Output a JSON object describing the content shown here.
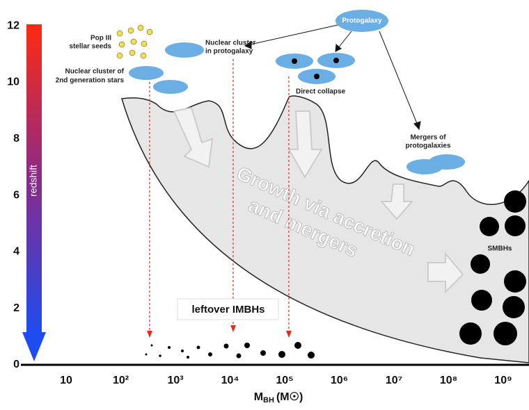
{
  "y_axis": {
    "label": "redshift",
    "ticks": [
      "0",
      "2",
      "4",
      "6",
      "8",
      "10",
      "12"
    ]
  },
  "x_axis": {
    "ticks": [
      "10",
      "10²",
      "10³",
      "10⁴",
      "10⁵",
      "10⁶",
      "10⁷",
      "10⁸",
      "10⁹"
    ],
    "label": {
      "main": "M",
      "sub": "BH",
      "unit": "(M☉)"
    }
  },
  "nodes": [
    {
      "label": [
        "Pop III",
        "stellar seeds"
      ]
    },
    {
      "label": [
        "Nuclear cluster",
        "in protogalaxy"
      ]
    },
    {
      "label": [
        "Protogalaxy"
      ]
    },
    {
      "label": [
        "Nuclear cluster of",
        "2nd generation stars"
      ]
    },
    {
      "label": [
        "Direct collapse"
      ]
    },
    {
      "label": [
        "Mergers of",
        "protogalaxies"
      ]
    },
    {
      "label": [
        "SMBHs"
      ]
    },
    {
      "label": [
        "leftover IMBHs"
      ]
    }
  ],
  "banner": {
    "lines": [
      "Growth via accretion",
      "and mergers"
    ]
  }
}
